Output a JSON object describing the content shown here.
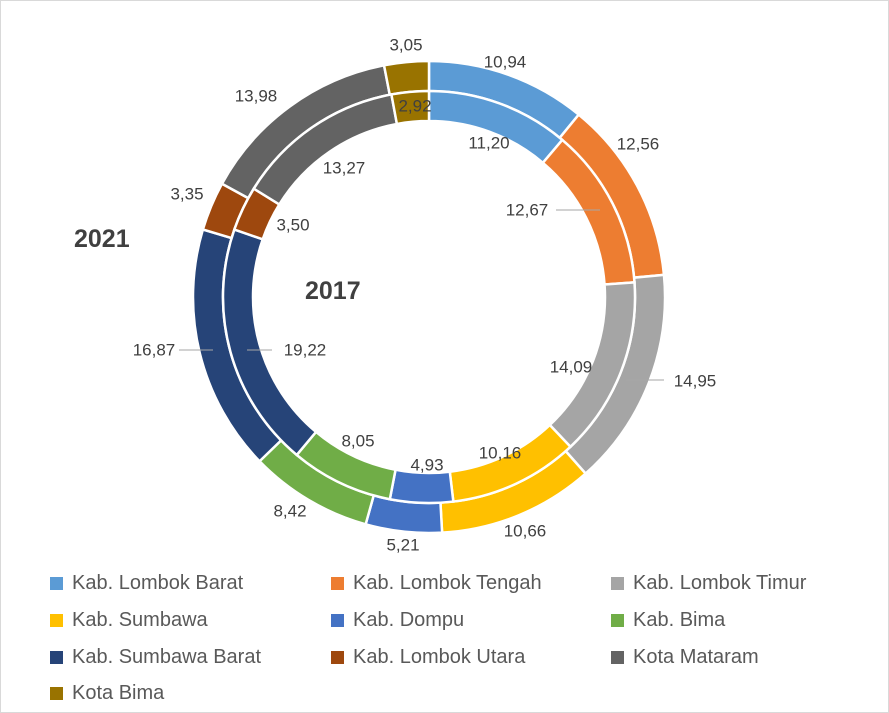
{
  "chart_data": {
    "type": "doughnut",
    "rings": [
      {
        "name": "2021",
        "values": [
          10.94,
          12.56,
          14.95,
          10.66,
          5.21,
          8.42,
          16.87,
          3.35,
          13.98,
          3.05
        ]
      },
      {
        "name": "2017",
        "values": [
          11.2,
          12.67,
          14.09,
          10.16,
          4.93,
          8.05,
          19.22,
          3.5,
          13.27,
          2.92
        ]
      }
    ],
    "categories": [
      "Kab. Lombok Barat",
      "Kab. Lombok Tengah",
      "Kab. Lombok Timur",
      "Kab. Sumbawa",
      "Kab. Dompu",
      "Kab. Bima",
      "Kab. Sumbawa Barat",
      "Kab. Lombok Utara",
      "Kota Mataram",
      "Kota Bima"
    ],
    "outer_labels": [
      "10,94",
      "12,56",
      "14,95",
      "10,66",
      "5,21",
      "8,42",
      "16,87",
      "3,35",
      "13,98",
      "3,05"
    ],
    "inner_labels": [
      "11,20",
      "12,67",
      "14,09",
      "10,16",
      "4,93",
      "8,05",
      "19,22",
      "3,50",
      "13,27",
      "2,92"
    ],
    "colors": [
      "#5b9bd5",
      "#ed7d31",
      "#a5a5a5",
      "#ffc000",
      "#4472c4",
      "#70ad47",
      "#264478",
      "#9e480e",
      "#636363",
      "#997300"
    ],
    "legend_position": "bottom",
    "ring_titles": {
      "outer": "2021",
      "inner": "2017"
    }
  }
}
